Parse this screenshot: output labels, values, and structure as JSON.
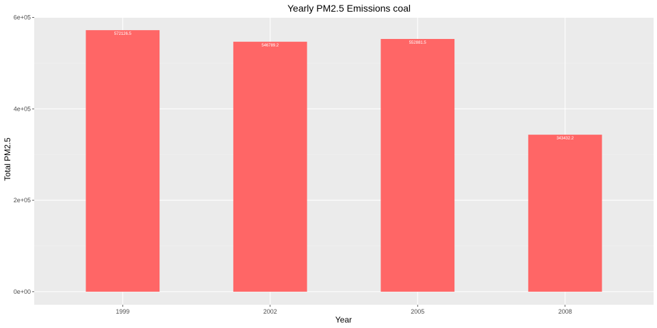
{
  "chart_data": {
    "type": "bar",
    "title": "Yearly PM2.5 Emissions coal",
    "xlabel": "Year",
    "ylabel": "Total PM2.5",
    "categories": [
      "1999",
      "2002",
      "2005",
      "2008"
    ],
    "values": [
      572126.5,
      546789.2,
      552881.5,
      343432.2
    ],
    "value_labels": [
      "572126.5",
      "546789.2",
      "552881.5",
      "343432.2"
    ],
    "y_ticks": [
      0,
      200000,
      400000,
      600000
    ],
    "y_tick_labels": [
      "0e+00",
      "2e+05",
      "4e+05",
      "6e+05"
    ],
    "ylim": [
      -28606,
      600733
    ],
    "grid": true,
    "colors": {
      "bar": "#ff6666",
      "panel": "#ebebeb",
      "grid_major": "#ffffff",
      "grid_minor": "#f2f2f2",
      "bar_label": "#ffffff"
    }
  }
}
